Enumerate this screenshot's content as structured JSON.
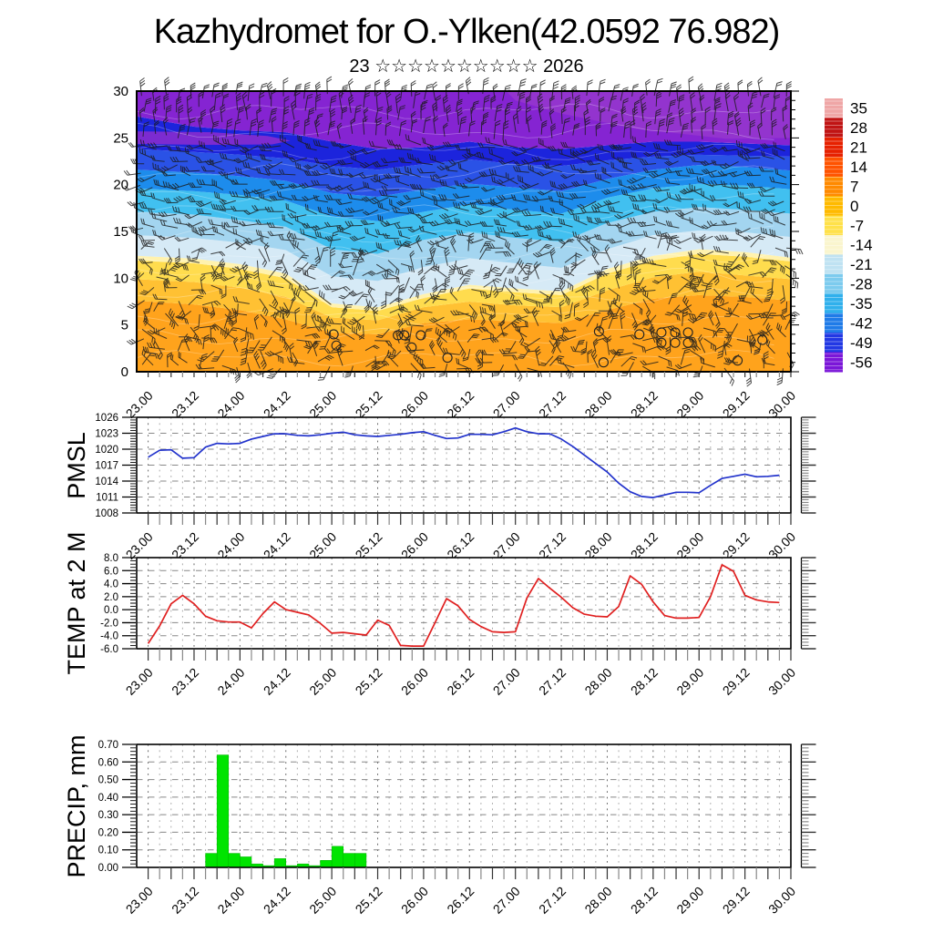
{
  "title": "Kazhydromet for O.-Ylken(42.0592 76.982)",
  "subtitle": "23 ☆☆☆☆☆☆☆☆☆☆ 2026",
  "x_axis": {
    "tick_labels": [
      "23.00",
      "23.12",
      "24.00",
      "24.12",
      "25.00",
      "25.12",
      "26.00",
      "26.12",
      "27.00",
      "27.12",
      "28.00",
      "28.12",
      "29.00",
      "29.12",
      "30.00"
    ],
    "tick_step_hours": 3,
    "label_step_hours": 12
  },
  "chart_data": [
    {
      "id": "cross_section",
      "type": "heatmap",
      "name": "time-height temperature cross-section with wind barbs",
      "ylim": [
        0,
        30
      ],
      "ytick_labels": [
        "0",
        "5",
        "10",
        "15",
        "20",
        "25",
        "30"
      ],
      "ytick_values": [
        0,
        5,
        10,
        15,
        20,
        25,
        30
      ],
      "colorbar": {
        "tick_labels": [
          "35",
          "28",
          "21",
          "14",
          "7",
          "0",
          "-7",
          "-14",
          "-21",
          "-28",
          "-35",
          "-42",
          "-49",
          "-56"
        ],
        "colors": [
          "#EFA6A6",
          "#C01414",
          "#E62100",
          "#FF5300",
          "#FF8A00",
          "#FFBA00",
          "#FFE14A",
          "#FAF5CE",
          "#BFE2F2",
          "#7CCBEE",
          "#30B0EC",
          "#1F7BE8",
          "#2238E4",
          "#7B16D8"
        ]
      },
      "bands": [
        {
          "color": "#FFA31C",
          "top": [
            7.6,
            7.2,
            6.6,
            5.6,
            4.2,
            4.0,
            5.2,
            5.6,
            5.4,
            5.2,
            6.6,
            7.8,
            8.2,
            8.0,
            7.6
          ]
        },
        {
          "color": "#FFC133",
          "top": [
            9.9,
            9.6,
            9.0,
            8.0,
            5.8,
            5.5,
            6.9,
            7.5,
            7.1,
            6.9,
            8.7,
            10.1,
            10.7,
            10.3,
            9.9
          ]
        },
        {
          "color": "#FFDC4E",
          "top": [
            11.9,
            11.6,
            11.0,
            10.0,
            6.9,
            6.5,
            7.9,
            8.9,
            8.5,
            8.2,
            10.5,
            11.9,
            12.6,
            12.3,
            11.8
          ]
        },
        {
          "color": "#FFF2AE",
          "top": [
            12.4,
            12.1,
            11.5,
            10.5,
            7.3,
            6.9,
            8.3,
            9.3,
            8.9,
            8.6,
            11.0,
            12.4,
            13.1,
            12.8,
            12.2
          ]
        },
        {
          "color": "#D6EAF6",
          "top": [
            14.6,
            14.3,
            13.8,
            13.0,
            10.2,
            9.7,
            11.2,
            12.1,
            11.6,
            11.1,
            13.1,
            14.6,
            15.1,
            14.9,
            14.4
          ]
        },
        {
          "color": "#A3D5F0",
          "top": [
            17.1,
            16.8,
            16.2,
            15.5,
            13.1,
            12.6,
            14.1,
            14.9,
            14.3,
            13.9,
            15.9,
            17.1,
            17.6,
            17.3,
            16.9
          ]
        },
        {
          "color": "#41C0F0",
          "top": [
            19.6,
            19.3,
            18.9,
            18.3,
            16.6,
            16.1,
            17.1,
            17.9,
            17.3,
            16.9,
            18.6,
            19.6,
            20.1,
            19.9,
            19.5
          ]
        },
        {
          "color": "#1D8CEC",
          "top": [
            21.6,
            21.3,
            20.9,
            20.4,
            19.1,
            18.7,
            19.5,
            20.1,
            19.7,
            19.3,
            20.6,
            21.6,
            22.1,
            21.9,
            21.5
          ]
        },
        {
          "color": "#2A52E6",
          "top": [
            23.8,
            23.5,
            23.2,
            22.8,
            22.0,
            21.6,
            22.2,
            22.7,
            22.2,
            22.0,
            22.6,
            23.0,
            23.2,
            23.1,
            23.0
          ]
        },
        {
          "color": "#1C24DC",
          "top": [
            27.3,
            26.2,
            25.8,
            25.6,
            24.6,
            23.8,
            24.0,
            24.6,
            24.0,
            23.8,
            24.2,
            24.6,
            24.6,
            24.4,
            24.2
          ]
        },
        {
          "color": "#8524D2",
          "top": [
            30,
            30,
            30,
            30,
            30,
            30,
            30,
            30,
            30,
            30,
            30,
            30,
            30,
            30,
            30
          ]
        }
      ],
      "patches": [
        {
          "color": "#7C2BD0",
          "points": [
            [
              0,
              25.7
            ],
            [
              0.7,
              25.6
            ],
            [
              1.3,
              25.2
            ],
            [
              1.55,
              24.7
            ],
            [
              1.35,
              24.3
            ],
            [
              0.6,
              24.25
            ],
            [
              0,
              24.35
            ]
          ]
        },
        {
          "color": "#9334CE",
          "points": [
            [
              3.9,
              30
            ],
            [
              7,
              30
            ],
            [
              7,
              25.0
            ],
            [
              6.3,
              24.9
            ],
            [
              5.3,
              26.0
            ],
            [
              4.5,
              27.6
            ],
            [
              4.0,
              29.0
            ]
          ]
        }
      ],
      "calm_circles": [
        [
          2.02,
          4.0
        ],
        [
          2.05,
          2.8
        ],
        [
          2.72,
          3.9
        ],
        [
          2.79,
          3.9
        ],
        [
          2.87,
          2.6
        ],
        [
          2.97,
          3.9
        ],
        [
          3.26,
          1.5
        ],
        [
          4.91,
          4.3
        ],
        [
          4.96,
          1.0
        ],
        [
          5.35,
          4.0
        ],
        [
          5.59,
          4.2
        ],
        [
          5.59,
          3.1
        ],
        [
          5.74,
          4.2
        ],
        [
          5.74,
          3.1
        ],
        [
          5.88,
          4.2
        ],
        [
          5.88,
          3.1
        ],
        [
          6.42,
          1.2
        ],
        [
          6.69,
          3.4
        ]
      ],
      "wind_barbs": {
        "cols": 56,
        "rows": 22,
        "seed": 42
      },
      "contours": {
        "count": 13,
        "color": "#ffffff",
        "opacity": 0.3
      }
    },
    {
      "id": "pmsl",
      "type": "line",
      "name": "PMSL",
      "line_color": "#2233cc",
      "ylim": [
        1008,
        1026
      ],
      "ytick_values": [
        1008,
        1011,
        1014,
        1017,
        1020,
        1023,
        1026
      ],
      "ytick_labels": [
        "1008",
        "1011",
        "1014",
        "1017",
        "1020",
        "1023",
        "1026"
      ],
      "minor_per_major": 6,
      "x_start_hour": 0,
      "x_step_hours": 3,
      "values": [
        1018.5,
        1019.8,
        1019.9,
        1018.3,
        1018.4,
        1020.4,
        1021.1,
        1021.0,
        1021.1,
        1021.9,
        1022.4,
        1022.9,
        1022.9,
        1022.6,
        1022.5,
        1022.7,
        1023.0,
        1023.2,
        1022.7,
        1022.5,
        1022.4,
        1022.6,
        1022.8,
        1023.1,
        1023.3,
        1022.6,
        1022.0,
        1022.1,
        1022.8,
        1022.8,
        1022.7,
        1023.3,
        1024.0,
        1023.3,
        1022.9,
        1022.9,
        1021.9,
        1020.5,
        1018.9,
        1017.3,
        1015.7,
        1013.6,
        1012.0,
        1011.1,
        1010.9,
        1011.4,
        1011.9,
        1011.9,
        1011.8,
        1013.2,
        1014.5,
        1014.9,
        1015.3,
        1014.8,
        1014.9,
        1015.1
      ]
    },
    {
      "id": "temp2m",
      "type": "line",
      "name": "TEMP at 2 M",
      "line_color": "#e02020",
      "ylim": [
        -6,
        8
      ],
      "ytick_values": [
        -6,
        -4,
        -2,
        0,
        2,
        4,
        6,
        8
      ],
      "ytick_labels": [
        "-6.0",
        "-4.0",
        "-2.0",
        "0.0",
        "2.0",
        "4.0",
        "6.0",
        "8.0"
      ],
      "minor_per_major": 4,
      "x_start_hour": 0,
      "x_step_hours": 3,
      "values": [
        -5.2,
        -2.5,
        0.9,
        2.2,
        0.9,
        -1.0,
        -1.7,
        -1.9,
        -1.9,
        -2.8,
        -0.6,
        1.2,
        0.0,
        -0.4,
        -0.8,
        -2.1,
        -3.6,
        -3.5,
        -3.7,
        -3.9,
        -1.6,
        -2.4,
        -5.5,
        -5.6,
        -5.6,
        -2.0,
        1.7,
        0.6,
        -1.5,
        -2.6,
        -3.4,
        -3.5,
        -3.4,
        1.8,
        4.8,
        3.3,
        1.9,
        0.3,
        -0.7,
        -1.0,
        -1.1,
        0.5,
        5.2,
        3.9,
        1.2,
        -0.9,
        -1.3,
        -1.3,
        -1.2,
        2.0,
        6.9,
        5.9,
        2.2,
        1.5,
        1.2,
        1.1
      ]
    },
    {
      "id": "precip",
      "type": "bar",
      "name": "PRECIP, mm",
      "bar_color": "#00E400",
      "ylim": [
        0,
        0.7
      ],
      "ytick_values": [
        0,
        0.1,
        0.2,
        0.3,
        0.4,
        0.5,
        0.6,
        0.7
      ],
      "ytick_labels": [
        "0.00",
        "0.10",
        "0.20",
        "0.30",
        "0.40",
        "0.50",
        "0.60",
        "0.70"
      ],
      "minor_per_major": 5,
      "x_start_hour": 18,
      "x_step_hours": 3,
      "values": [
        0.08,
        0.64,
        0.08,
        0.06,
        0.02,
        0.01,
        0.05,
        0.01,
        0.02,
        0.01,
        0.04,
        0.12,
        0.08,
        0.08
      ]
    }
  ]
}
